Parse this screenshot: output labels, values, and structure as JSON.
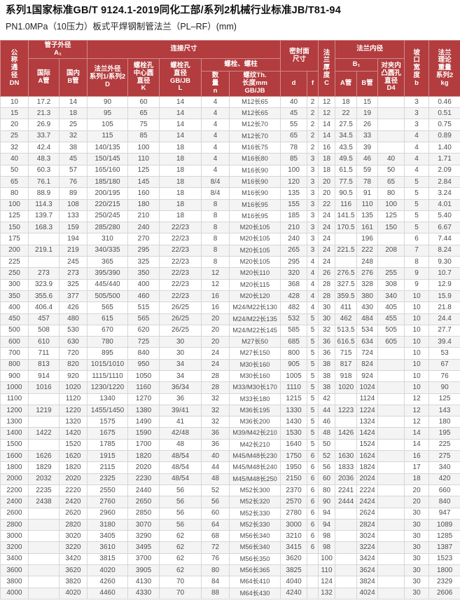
{
  "page": {
    "title": "系列1国家标准GB/T 9124.1-2019同化工部/系列2机械行业标准JB/T81-94",
    "subtitle": "PN1.0MPa（10压力）板式平焊钢制管法兰（PL–RF）(mm)"
  },
  "colors": {
    "header_bg": "#b23c3e",
    "header_text": "#ffffff",
    "row_alt_bg": "#f4f4f4",
    "body_text": "#4d4d4d",
    "grid_line": "#d6d6d6"
  },
  "table": {
    "header": {
      "dn": "公\n称\n通\n径\nDN",
      "pipe_od": "管子外径\nA₁",
      "pipe_od_intl": "国际\nA管",
      "pipe_od_dom": "国内\nB管",
      "connection": "连接尺寸",
      "flange_od": "法兰外径\n系列1/系列2\nD",
      "bolt_circle": "螺栓孔\n中心圆\n直径\nK",
      "bolt_hole": "螺栓孔\n直径\nGB/JB\nL",
      "bolts": "螺栓、螺柱",
      "bolt_qty": "数\n量\nn",
      "bolt_thread": "螺纹Th.\n长度mm\nGB/JB",
      "seal_face": "密封面\n尺寸",
      "seal_d": "d",
      "seal_f": "f",
      "thickness": "法\n兰\n厚\n度\nC",
      "bore": "法兰内径",
      "b1": "B₁",
      "bore_a": "A管",
      "bore_b": "B管",
      "d4": "对夹内\n凸圆孔\n直径\nD4",
      "groove": "坡\n口\n宽\n度\nb",
      "weight": "法兰\n理论\n重量\n系列2\nkg"
    },
    "rows": [
      [
        "10",
        "17.2",
        "14",
        "90",
        "60",
        "14",
        "4",
        "M12长65",
        "40",
        "2",
        "12",
        "18",
        "15",
        "",
        "3",
        "0.46"
      ],
      [
        "15",
        "21.3",
        "18",
        "95",
        "65",
        "14",
        "4",
        "M12长65",
        "45",
        "2",
        "12",
        "22",
        "19",
        "",
        "3",
        "0.51"
      ],
      [
        "20",
        "26.9",
        "25",
        "105",
        "75",
        "14",
        "4",
        "M12长70",
        "55",
        "2",
        "14",
        "27.5",
        "26",
        "",
        "3",
        "0.75"
      ],
      [
        "25",
        "33.7",
        "32",
        "115",
        "85",
        "14",
        "4",
        "M12长70",
        "65",
        "2",
        "14",
        "34.5",
        "33",
        "",
        "4",
        "0.89"
      ],
      [
        "32",
        "42.4",
        "38",
        "140/135",
        "100",
        "18",
        "4",
        "M16长75",
        "78",
        "2",
        "16",
        "43.5",
        "39",
        "",
        "4",
        "1.40"
      ],
      [
        "40",
        "48.3",
        "45",
        "150/145",
        "110",
        "18",
        "4",
        "M16长80",
        "85",
        "3",
        "18",
        "49.5",
        "46",
        "40",
        "4",
        "1.71"
      ],
      [
        "50",
        "60.3",
        "57",
        "165/160",
        "125",
        "18",
        "4",
        "M16长90",
        "100",
        "3",
        "18",
        "61.5",
        "59",
        "50",
        "4",
        "2.09"
      ],
      [
        "65",
        "76.1",
        "76",
        "185/180",
        "145",
        "18",
        "8/4",
        "M16长90",
        "120",
        "3",
        "20",
        "77.5",
        "78",
        "65",
        "5",
        "2.84"
      ],
      [
        "80",
        "88.9",
        "89",
        "200/195",
        "160",
        "18",
        "8/4",
        "M16长90",
        "135",
        "3",
        "20",
        "90.5",
        "91",
        "80",
        "5",
        "3.24"
      ],
      [
        "100",
        "114.3",
        "108",
        "220/215",
        "180",
        "18",
        "8",
        "M16长95",
        "155",
        "3",
        "22",
        "116",
        "110",
        "100",
        "5",
        "4.01"
      ],
      [
        "125",
        "139.7",
        "133",
        "250/245",
        "210",
        "18",
        "8",
        "M16长95",
        "185",
        "3",
        "24",
        "141.5",
        "135",
        "125",
        "5",
        "5.40"
      ],
      [
        "150",
        "168.3",
        "159",
        "285/280",
        "240",
        "22/23",
        "8",
        "M20长105",
        "210",
        "3",
        "24",
        "170.5",
        "161",
        "150",
        "5",
        "6.67"
      ],
      [
        "175",
        "",
        "194",
        "310",
        "270",
        "22/23",
        "8",
        "M20长105",
        "240",
        "3",
        "24",
        "",
        "196",
        "",
        "6",
        "7.44"
      ],
      [
        "200",
        "219.1",
        "219",
        "340/335",
        "295",
        "22/23",
        "8",
        "M20长105",
        "265",
        "3",
        "24",
        "221.5",
        "222",
        "208",
        "7",
        "8.24"
      ],
      [
        "225",
        "",
        "245",
        "365",
        "325",
        "22/23",
        "8",
        "M20长105",
        "295",
        "4",
        "24",
        "",
        "248",
        "",
        "8",
        "9.30"
      ],
      [
        "250",
        "273",
        "273",
        "395/390",
        "350",
        "22/23",
        "12",
        "M20长110",
        "320",
        "4",
        "26",
        "276.5",
        "276",
        "255",
        "9",
        "10.7"
      ],
      [
        "300",
        "323.9",
        "325",
        "445/440",
        "400",
        "22/23",
        "12",
        "M20长115",
        "368",
        "4",
        "28",
        "327.5",
        "328",
        "308",
        "9",
        "12.9"
      ],
      [
        "350",
        "355.6",
        "377",
        "505/500",
        "460",
        "22/23",
        "16",
        "M20长120",
        "428",
        "4",
        "28",
        "359.5",
        "380",
        "340",
        "10",
        "15.9"
      ],
      [
        "400",
        "406.4",
        "426",
        "565",
        "515",
        "26/25",
        "16",
        "M24/M22长130",
        "482",
        "4",
        "30",
        "411",
        "430",
        "405",
        "10",
        "21.8"
      ],
      [
        "450",
        "457",
        "480",
        "615",
        "565",
        "26/25",
        "20",
        "M24/M22长135",
        "532",
        "5",
        "30",
        "462",
        "484",
        "455",
        "10",
        "24.4"
      ],
      [
        "500",
        "508",
        "530",
        "670",
        "620",
        "26/25",
        "20",
        "M24/M22长145",
        "585",
        "5",
        "32",
        "513.5",
        "534",
        "505",
        "10",
        "27.7"
      ],
      [
        "600",
        "610",
        "630",
        "780",
        "725",
        "30",
        "20",
        "M27长50",
        "685",
        "5",
        "36",
        "616.5",
        "634",
        "605",
        "10",
        "39.4"
      ],
      [
        "700",
        "711",
        "720",
        "895",
        "840",
        "30",
        "24",
        "M27长150",
        "800",
        "5",
        "36",
        "715",
        "724",
        "",
        "10",
        "53"
      ],
      [
        "800",
        "813",
        "820",
        "1015/1010",
        "950",
        "34",
        "24",
        "M30长160",
        "905",
        "5",
        "38",
        "817",
        "824",
        "",
        "10",
        "67"
      ],
      [
        "900",
        "914",
        "920",
        "1115/1110",
        "1050",
        "34",
        "28",
        "M30长160",
        "1005",
        "5",
        "38",
        "918",
        "924",
        "",
        "10",
        "76"
      ],
      [
        "1000",
        "1016",
        "1020",
        "1230/1220",
        "1160",
        "36/34",
        "28",
        "M33/M30长170",
        "1110",
        "5",
        "38",
        "1020",
        "1024",
        "",
        "10",
        "90"
      ],
      [
        "1100",
        "",
        "1120",
        "1340",
        "1270",
        "36",
        "32",
        "M33长180",
        "1215",
        "5",
        "42",
        "",
        "1124",
        "",
        "12",
        "125"
      ],
      [
        "1200",
        "1219",
        "1220",
        "1455/1450",
        "1380",
        "39/41",
        "32",
        "M36长195",
        "1330",
        "5",
        "44",
        "1223",
        "1224",
        "",
        "12",
        "143"
      ],
      [
        "1300",
        "",
        "1320",
        "1575",
        "1490",
        "41",
        "32",
        "M36长200",
        "1430",
        "5",
        "46",
        "",
        "1324",
        "",
        "12",
        "180"
      ],
      [
        "1400",
        "1422",
        "1420",
        "1675",
        "1590",
        "42/48",
        "36",
        "M39/M42长210",
        "1530",
        "5",
        "48",
        "1426",
        "1424",
        "",
        "14",
        "195"
      ],
      [
        "1500",
        "",
        "1520",
        "1785",
        "1700",
        "48",
        "36",
        "M42长210",
        "1640",
        "5",
        "50",
        "",
        "1524",
        "",
        "14",
        "225"
      ],
      [
        "1600",
        "1626",
        "1620",
        "1915",
        "1820",
        "48/54",
        "40",
        "M45/M48长230",
        "1750",
        "6",
        "52",
        "1630",
        "1624",
        "",
        "16",
        "275"
      ],
      [
        "1800",
        "1829",
        "1820",
        "2115",
        "2020",
        "48/54",
        "44",
        "M45/M48长240",
        "1950",
        "6",
        "56",
        "1833",
        "1824",
        "",
        "17",
        "340"
      ],
      [
        "2000",
        "2032",
        "2020",
        "2325",
        "2230",
        "48/54",
        "48",
        "M45/M48长250",
        "2150",
        "6",
        "60",
        "2036",
        "2024",
        "",
        "18",
        "420"
      ],
      [
        "2200",
        "2235",
        "2220",
        "2550",
        "2440",
        "56",
        "52",
        "M52长300",
        "2370",
        "6",
        "80",
        "2241",
        "2224",
        "",
        "20",
        "660"
      ],
      [
        "2400",
        "2438",
        "2420",
        "2760",
        "2650",
        "56",
        "56",
        "M52长320",
        "2570",
        "6",
        "90",
        "2444",
        "2424",
        "",
        "20",
        "840"
      ],
      [
        "2600",
        "",
        "2620",
        "2960",
        "2850",
        "56",
        "60",
        "M52长330",
        "2780",
        "6",
        "94",
        "",
        "2624",
        "",
        "30",
        "947"
      ],
      [
        "2800",
        "",
        "2820",
        "3180",
        "3070",
        "56",
        "64",
        "M52长330",
        "3000",
        "6",
        "94",
        "",
        "2824",
        "",
        "30",
        "1089"
      ],
      [
        "3000",
        "",
        "3020",
        "3405",
        "3290",
        "62",
        "68",
        "M56长340",
        "3210",
        "6",
        "98",
        "",
        "3024",
        "",
        "30",
        "1285"
      ],
      [
        "3200",
        "",
        "3220",
        "3610",
        "3495",
        "62",
        "72",
        "M56长340",
        "3415",
        "6",
        "98",
        "",
        "3224",
        "",
        "30",
        "1387"
      ],
      [
        "3400",
        "",
        "3420",
        "3815",
        "3700",
        "62",
        "76",
        "M56长350",
        "3620",
        "",
        "100",
        "",
        "3424",
        "",
        "30",
        "1523"
      ],
      [
        "3600",
        "",
        "3620",
        "4020",
        "3905",
        "62",
        "80",
        "M56长365",
        "3825",
        "",
        "110",
        "",
        "3624",
        "",
        "30",
        "1800"
      ],
      [
        "3800",
        "",
        "3820",
        "4260",
        "4130",
        "70",
        "84",
        "M64长410",
        "4040",
        "",
        "124",
        "",
        "3824",
        "",
        "30",
        "2329"
      ],
      [
        "4000",
        "",
        "4020",
        "4460",
        "4330",
        "70",
        "88",
        "M64长430",
        "4240",
        "",
        "132",
        "",
        "4024",
        "",
        "30",
        "2606"
      ]
    ]
  }
}
